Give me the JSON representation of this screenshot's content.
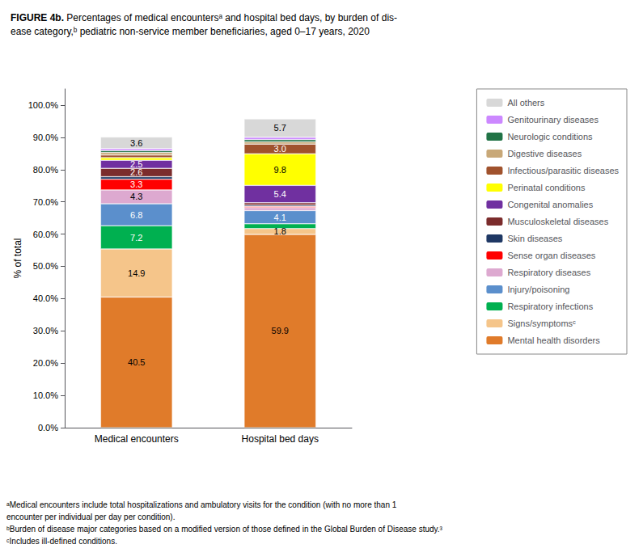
{
  "chart_data": {
    "type": "bar",
    "stacked": true,
    "title": "FIGURE 4b.",
    "subtitle": "Percentages of medical encountersᵃ and hospital bed days, by burden of dis-\nease category,ᵇ pediatric non-service member beneficiaries, aged 0–17 years, 2020",
    "ylabel": "% of total",
    "annotations": [
      "ᵃMedical encounters include total hospitalizations and ambulatory visits for the condition (with no more than 1\nencounter per individual per day per condition).\nᵇBurden of disease major categories based on a modified version of those defined in the Global Burden of Disease study.³\nᶜIncludes ill-defined conditions."
    ],
    "categories": [
      "Medical encounters",
      "Hospital bed days"
    ],
    "series": [
      {
        "name": "Mental health disorders",
        "color": "#E07B2A",
        "values": [
          40.5,
          59.9
        ],
        "value_labels": [
          "40.5",
          "59.9"
        ]
      },
      {
        "name": "Signs/symptomsᶜ",
        "color": "#F5C58A",
        "values": [
          14.9,
          1.8
        ],
        "value_labels": [
          "14.9",
          "1.8"
        ]
      },
      {
        "name": "Respiratory infections",
        "color": "#00B050",
        "values": [
          7.2,
          1.5
        ],
        "value_labels": [
          "7.2",
          null
        ]
      },
      {
        "name": "Injury/poisoning",
        "color": "#5B8FCC",
        "values": [
          6.8,
          4.1
        ],
        "value_labels": [
          "6.8",
          "4.1"
        ]
      },
      {
        "name": "Respiratory diseases",
        "color": "#DDA9D0",
        "values": [
          4.3,
          0.9
        ],
        "value_labels": [
          "4.3",
          null
        ]
      },
      {
        "name": "Sense organ diseases",
        "color": "#FF0000",
        "values": [
          3.3,
          0.4
        ],
        "value_labels": [
          "3.3",
          null
        ]
      },
      {
        "name": "Skin diseases",
        "color": "#1F3864",
        "values": [
          0.8,
          0.4
        ],
        "value_labels": [
          null,
          null
        ]
      },
      {
        "name": "Musculoskeletal diseases",
        "color": "#7B2C2C",
        "values": [
          2.6,
          0.7
        ],
        "value_labels": [
          "2.6",
          null
        ]
      },
      {
        "name": "Congenital anomalies",
        "color": "#7030A0",
        "values": [
          2.5,
          5.4
        ],
        "value_labels": [
          "2.5",
          "5.4"
        ]
      },
      {
        "name": "Perinatal conditions",
        "color": "#FFFF00",
        "values": [
          0.8,
          9.8
        ],
        "value_labels": [
          null,
          "9.8"
        ]
      },
      {
        "name": "Infectious/parasitic diseases",
        "color": "#A0522D",
        "values": [
          0.8,
          3.0
        ],
        "value_labels": [
          null,
          "3.0"
        ]
      },
      {
        "name": "Digestive diseases",
        "color": "#C8A878",
        "values": [
          0.8,
          0.7
        ],
        "value_labels": [
          null,
          null
        ]
      },
      {
        "name": "Neurologic conditions",
        "color": "#217346",
        "values": [
          0.6,
          0.7
        ],
        "value_labels": [
          null,
          null
        ]
      },
      {
        "name": "Genitourinary diseases",
        "color": "#CC88FF",
        "values": [
          0.6,
          0.7
        ],
        "value_labels": [
          null,
          null
        ]
      },
      {
        "name": "All others",
        "color": "#D8D8D8",
        "values": [
          3.6,
          5.7
        ],
        "value_labels": [
          "3.6",
          "5.7"
        ]
      }
    ],
    "ylim": [
      0,
      105
    ],
    "yticks": [
      {
        "value": 0,
        "label": "0.0%"
      },
      {
        "value": 10,
        "label": "10.0%"
      },
      {
        "value": 20,
        "label": "20.0%"
      },
      {
        "value": 30,
        "label": "30.0%"
      },
      {
        "value": 40,
        "label": "40.0%"
      },
      {
        "value": 50,
        "label": "50.0%"
      },
      {
        "value": 60,
        "label": "60.0%"
      },
      {
        "value": 70,
        "label": "70.0%"
      },
      {
        "value": 80,
        "label": "80.0%"
      },
      {
        "value": 90,
        "label": "90.0%"
      },
      {
        "value": 100,
        "label": "100.0%"
      }
    ],
    "grid": false,
    "legend": "right",
    "data_labels": true
  }
}
